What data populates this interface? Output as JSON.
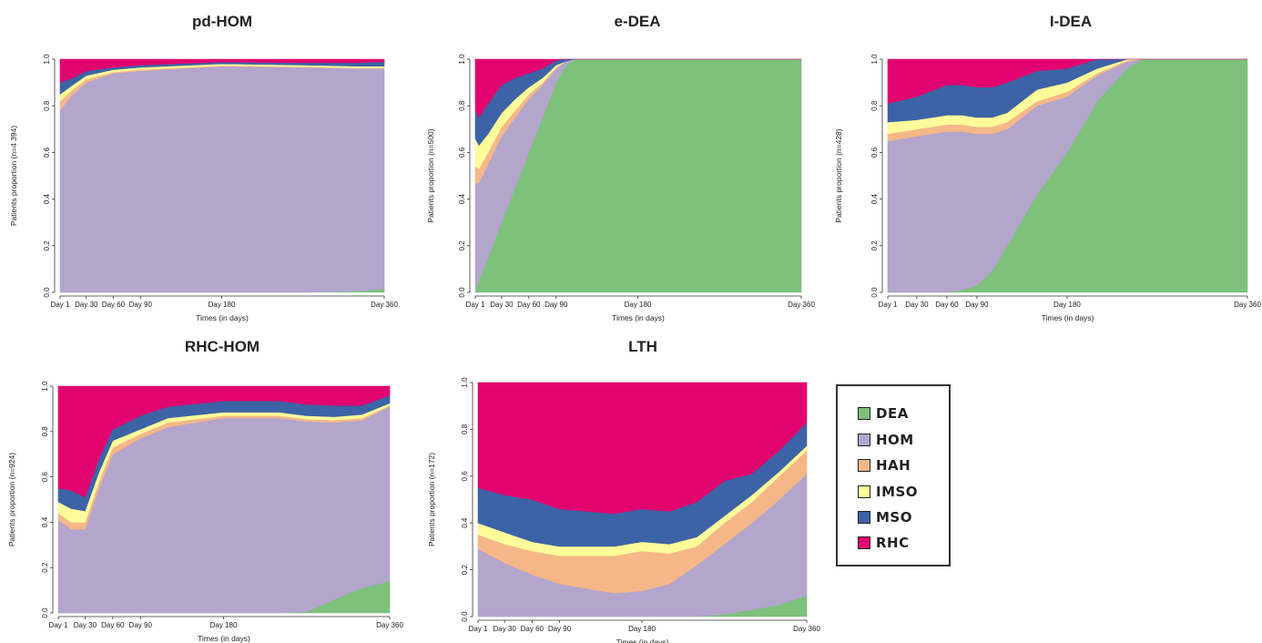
{
  "chart_data": [
    {
      "type": "area",
      "title": "pd-HOM",
      "xlabel": "Times (in days)",
      "ylabel": "Patients proportion (n=4 394)",
      "ylim": [
        0,
        1
      ],
      "yticks": [
        "0.0",
        "0.2",
        "0.4",
        "0.6",
        "0.8",
        "1.0"
      ],
      "xticks": [
        {
          "v": 1,
          "label": "Day 1"
        },
        {
          "v": 30,
          "label": "Day 30"
        },
        {
          "v": 60,
          "label": "Day 60"
        },
        {
          "v": 90,
          "label": "Day 90"
        },
        {
          "v": 180,
          "label": "Day 180"
        },
        {
          "v": 360,
          "label": "Day 360"
        }
      ],
      "x": [
        1,
        15,
        30,
        60,
        90,
        180,
        270,
        330,
        360
      ],
      "series": [
        {
          "name": "DEA",
          "values": [
            0.0,
            0.0,
            0.0,
            0.0,
            0.0,
            0.0,
            0.0,
            0.005,
            0.015
          ]
        },
        {
          "name": "HOM",
          "values": [
            0.78,
            0.85,
            0.9,
            0.94,
            0.95,
            0.97,
            0.965,
            0.955,
            0.945
          ]
        },
        {
          "name": "HAH",
          "values": [
            0.04,
            0.02,
            0.015,
            0.005,
            0.005,
            0.003,
            0.003,
            0.003,
            0.003
          ]
        },
        {
          "name": "IMSO",
          "values": [
            0.03,
            0.02,
            0.015,
            0.01,
            0.01,
            0.007,
            0.007,
            0.007,
            0.007
          ]
        },
        {
          "name": "MSO",
          "values": [
            0.05,
            0.03,
            0.02,
            0.01,
            0.01,
            0.008,
            0.01,
            0.015,
            0.02
          ]
        },
        {
          "name": "RHC",
          "values": [
            0.1,
            0.08,
            0.05,
            0.035,
            0.025,
            0.012,
            0.015,
            0.015,
            0.01
          ]
        }
      ]
    },
    {
      "type": "area",
      "title": "e-DEA",
      "xlabel": "Times (in days)",
      "ylabel": "Patients proportion (n=500)",
      "ylim": [
        0,
        1
      ],
      "yticks": [
        "0.0",
        "0.2",
        "0.4",
        "0.6",
        "0.8",
        "1.0"
      ],
      "xticks": [
        {
          "v": 1,
          "label": "Day 1"
        },
        {
          "v": 30,
          "label": "Day 30"
        },
        {
          "v": 60,
          "label": "Day 60"
        },
        {
          "v": 90,
          "label": "Day 90"
        },
        {
          "v": 180,
          "label": "Day 180"
        },
        {
          "v": 360,
          "label": "Day 360"
        }
      ],
      "x": [
        1,
        5,
        15,
        30,
        45,
        60,
        75,
        90,
        100,
        110,
        180,
        360
      ],
      "series": [
        {
          "name": "DEA",
          "values": [
            0.0,
            0.05,
            0.15,
            0.3,
            0.45,
            0.6,
            0.75,
            0.9,
            0.97,
            1.0,
            1.0,
            1.0
          ]
        },
        {
          "name": "HOM",
          "values": [
            0.47,
            0.42,
            0.4,
            0.37,
            0.3,
            0.23,
            0.14,
            0.06,
            0.02,
            0.0,
            0.0,
            0.0
          ]
        },
        {
          "name": "HAH",
          "values": [
            0.07,
            0.06,
            0.05,
            0.04,
            0.03,
            0.02,
            0.01,
            0.005,
            0.0,
            0.0,
            0.0,
            0.0
          ]
        },
        {
          "name": "IMSO",
          "values": [
            0.12,
            0.1,
            0.08,
            0.06,
            0.05,
            0.03,
            0.02,
            0.01,
            0.0,
            0.0,
            0.0,
            0.0
          ]
        },
        {
          "name": "MSO",
          "values": [
            0.12,
            0.12,
            0.13,
            0.12,
            0.09,
            0.06,
            0.04,
            0.02,
            0.01,
            0.0,
            0.0,
            0.0
          ]
        },
        {
          "name": "RHC",
          "values": [
            0.22,
            0.25,
            0.19,
            0.11,
            0.08,
            0.06,
            0.04,
            0.005,
            0.0,
            0.0,
            0.0,
            0.0
          ]
        }
      ]
    },
    {
      "type": "area",
      "title": "I-DEA",
      "xlabel": "Times (in days)",
      "ylabel": "Patients proportion (n=428)",
      "ylim": [
        0,
        1
      ],
      "yticks": [
        "0.0",
        "0.2",
        "0.4",
        "0.6",
        "0.8",
        "1.0"
      ],
      "xticks": [
        {
          "v": 1,
          "label": "Day 1"
        },
        {
          "v": 30,
          "label": "Day 30"
        },
        {
          "v": 60,
          "label": "Day 60"
        },
        {
          "v": 90,
          "label": "Day 90"
        },
        {
          "v": 180,
          "label": "Day 180"
        },
        {
          "v": 360,
          "label": "Day 360"
        }
      ],
      "x": [
        1,
        30,
        60,
        75,
        90,
        105,
        120,
        150,
        180,
        210,
        240,
        255,
        270,
        360
      ],
      "series": [
        {
          "name": "DEA",
          "values": [
            0.0,
            0.0,
            0.0,
            0.01,
            0.03,
            0.09,
            0.2,
            0.42,
            0.6,
            0.82,
            0.96,
            1.0,
            1.0,
            1.0
          ]
        },
        {
          "name": "HOM",
          "values": [
            0.65,
            0.67,
            0.69,
            0.68,
            0.65,
            0.59,
            0.5,
            0.38,
            0.24,
            0.11,
            0.03,
            0.0,
            0.0,
            0.0
          ]
        },
        {
          "name": "HAH",
          "values": [
            0.03,
            0.03,
            0.03,
            0.03,
            0.03,
            0.03,
            0.03,
            0.02,
            0.02,
            0.01,
            0.005,
            0.0,
            0.0,
            0.0
          ]
        },
        {
          "name": "IMSO",
          "values": [
            0.05,
            0.04,
            0.04,
            0.04,
            0.04,
            0.04,
            0.04,
            0.05,
            0.04,
            0.02,
            0.005,
            0.0,
            0.0,
            0.0
          ]
        },
        {
          "name": "MSO",
          "values": [
            0.08,
            0.1,
            0.13,
            0.13,
            0.13,
            0.13,
            0.13,
            0.08,
            0.06,
            0.04,
            0.0,
            0.0,
            0.0,
            0.0
          ]
        },
        {
          "name": "RHC",
          "values": [
            0.19,
            0.16,
            0.11,
            0.11,
            0.12,
            0.12,
            0.1,
            0.05,
            0.04,
            0.0,
            0.0,
            0.0,
            0.0,
            0.0
          ]
        }
      ]
    },
    {
      "type": "area",
      "title": "RHC-HOM",
      "xlabel": "Times (in days)",
      "ylabel": "Patients proportion (n=924)",
      "ylim": [
        0,
        1
      ],
      "yticks": [
        "0.0",
        "0.2",
        "0.4",
        "0.6",
        "0.8",
        "1.0"
      ],
      "xticks": [
        {
          "v": 1,
          "label": "Day 1"
        },
        {
          "v": 30,
          "label": "Day 30"
        },
        {
          "v": 60,
          "label": "Day 60"
        },
        {
          "v": 90,
          "label": "Day 90"
        },
        {
          "v": 180,
          "label": "Day 180"
        },
        {
          "v": 360,
          "label": "Day 360"
        }
      ],
      "x": [
        1,
        15,
        30,
        45,
        60,
        90,
        120,
        180,
        240,
        270,
        300,
        330,
        360
      ],
      "series": [
        {
          "name": "DEA",
          "values": [
            0.0,
            0.0,
            0.0,
            0.0,
            0.0,
            0.0,
            0.0,
            0.0,
            0.0,
            0.005,
            0.06,
            0.11,
            0.14
          ]
        },
        {
          "name": "HOM",
          "values": [
            0.41,
            0.37,
            0.37,
            0.55,
            0.7,
            0.77,
            0.82,
            0.86,
            0.86,
            0.84,
            0.78,
            0.74,
            0.77
          ]
        },
        {
          "name": "HAH",
          "values": [
            0.03,
            0.03,
            0.03,
            0.03,
            0.03,
            0.02,
            0.02,
            0.01,
            0.01,
            0.01,
            0.01,
            0.01,
            0.005
          ]
        },
        {
          "name": "IMSO",
          "values": [
            0.05,
            0.06,
            0.05,
            0.04,
            0.03,
            0.02,
            0.02,
            0.015,
            0.015,
            0.015,
            0.015,
            0.015,
            0.01
          ]
        },
        {
          "name": "MSO",
          "values": [
            0.06,
            0.08,
            0.06,
            0.06,
            0.05,
            0.06,
            0.05,
            0.05,
            0.05,
            0.05,
            0.05,
            0.04,
            0.035
          ]
        },
        {
          "name": "RHC",
          "values": [
            0.45,
            0.46,
            0.49,
            0.32,
            0.19,
            0.13,
            0.09,
            0.065,
            0.065,
            0.08,
            0.085,
            0.085,
            0.04
          ]
        }
      ]
    },
    {
      "type": "area",
      "title": "LTH",
      "xlabel": "Times (in days)",
      "ylabel": "Patients proportion (n=172)",
      "ylim": [
        0,
        1
      ],
      "yticks": [
        "0.0",
        "0.2",
        "0.4",
        "0.6",
        "0.8",
        "1.0"
      ],
      "xticks": [
        {
          "v": 1,
          "label": "Day 1"
        },
        {
          "v": 30,
          "label": "Day 30"
        },
        {
          "v": 60,
          "label": "Day 60"
        },
        {
          "v": 90,
          "label": "Day 90"
        },
        {
          "v": 180,
          "label": "Day 180"
        },
        {
          "v": 360,
          "label": "Day 360"
        }
      ],
      "x": [
        1,
        30,
        60,
        90,
        120,
        150,
        180,
        210,
        240,
        270,
        300,
        330,
        360
      ],
      "series": [
        {
          "name": "DEA",
          "values": [
            0.0,
            0.0,
            0.0,
            0.0,
            0.0,
            0.0,
            0.0,
            0.0,
            0.0,
            0.01,
            0.03,
            0.05,
            0.09
          ]
        },
        {
          "name": "HOM",
          "values": [
            0.29,
            0.23,
            0.18,
            0.14,
            0.12,
            0.1,
            0.11,
            0.14,
            0.22,
            0.3,
            0.37,
            0.45,
            0.52
          ]
        },
        {
          "name": "HAH",
          "values": [
            0.06,
            0.08,
            0.1,
            0.12,
            0.14,
            0.16,
            0.17,
            0.13,
            0.08,
            0.09,
            0.09,
            0.1,
            0.1
          ]
        },
        {
          "name": "IMSO",
          "values": [
            0.05,
            0.05,
            0.04,
            0.04,
            0.04,
            0.04,
            0.04,
            0.04,
            0.04,
            0.03,
            0.03,
            0.02,
            0.02
          ]
        },
        {
          "name": "MSO",
          "values": [
            0.15,
            0.16,
            0.18,
            0.16,
            0.15,
            0.14,
            0.14,
            0.14,
            0.15,
            0.15,
            0.09,
            0.09,
            0.1
          ]
        },
        {
          "name": "RHC",
          "values": [
            0.45,
            0.48,
            0.5,
            0.54,
            0.55,
            0.56,
            0.54,
            0.55,
            0.51,
            0.42,
            0.39,
            0.29,
            0.17
          ]
        }
      ]
    }
  ],
  "legend": {
    "items": [
      {
        "name": "DEA",
        "color": "#7dc17a"
      },
      {
        "name": "HOM",
        "color": "#b3a5cc"
      },
      {
        "name": "HAH",
        "color": "#f5b787"
      },
      {
        "name": "IMSO",
        "color": "#fdfb9a"
      },
      {
        "name": "MSO",
        "color": "#3c63a6"
      },
      {
        "name": "RHC",
        "color": "#e2036f"
      }
    ]
  }
}
